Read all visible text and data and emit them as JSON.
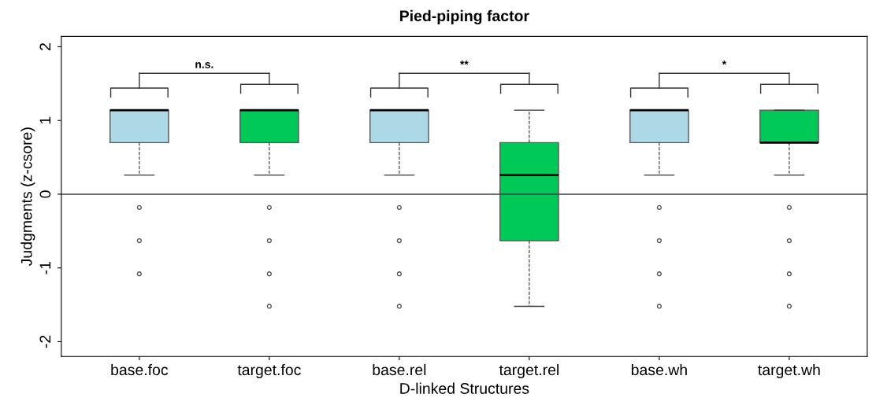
{
  "chart_data": {
    "type": "box",
    "title": "Pied-piping factor",
    "xlabel": "D-linked Structures",
    "ylabel": "Judgments (z-csore)",
    "categories": [
      "base.foc",
      "target.foc",
      "base.rel",
      "target.rel",
      "base.wh",
      "target.wh"
    ],
    "colors": [
      "#add8e6",
      "#00c957",
      "#add8e6",
      "#00c957",
      "#add8e6",
      "#00c957"
    ],
    "boxes": [
      {
        "low": 0.26,
        "q1": 0.7,
        "median": 1.14,
        "q3": 1.14,
        "high": 1.14,
        "outliers": [
          -0.18,
          -0.63,
          -1.08
        ]
      },
      {
        "low": 0.26,
        "q1": 0.7,
        "median": 1.14,
        "q3": 1.14,
        "high": 1.14,
        "outliers": [
          -0.18,
          -0.63,
          -1.08,
          -1.52
        ]
      },
      {
        "low": 0.26,
        "q1": 0.7,
        "median": 1.14,
        "q3": 1.14,
        "high": 1.14,
        "outliers": [
          -0.18,
          -0.63,
          -1.08,
          -1.52
        ]
      },
      {
        "low": -1.52,
        "q1": -0.63,
        "median": 0.26,
        "q3": 0.7,
        "high": 1.14
      },
      {
        "low": 0.26,
        "q1": 0.7,
        "median": 1.14,
        "q3": 1.14,
        "high": 1.14,
        "outliers": [
          -0.18,
          -0.63,
          -1.08,
          -1.52
        ]
      },
      {
        "low": 0.26,
        "q1": 0.7,
        "median": 0.7,
        "q3": 1.14,
        "high": 1.14,
        "outliers": [
          -0.18,
          -0.63,
          -1.08,
          -1.52
        ]
      }
    ],
    "ylim": [
      -2.2,
      2.14
    ],
    "yticks": [
      -2,
      -1,
      0,
      1,
      2
    ],
    "ref_lines": [
      {
        "axis": "y",
        "value": 0,
        "color": "#404040"
      }
    ],
    "annotations": [
      "n.s.",
      "**",
      "*"
    ],
    "grid": false
  }
}
